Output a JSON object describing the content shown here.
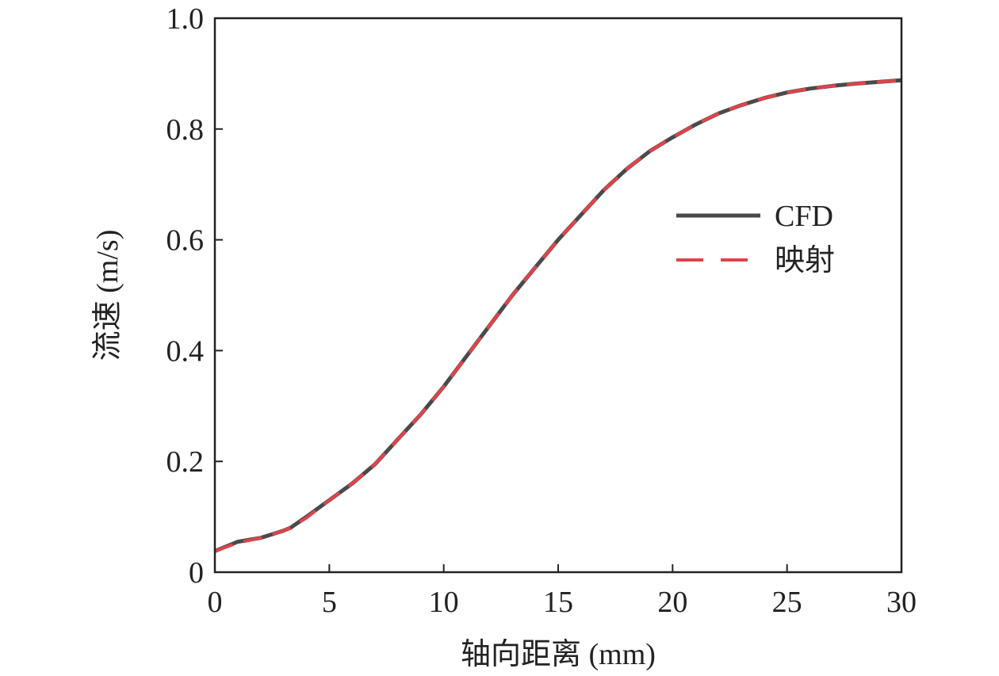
{
  "chart_data": {
    "type": "line",
    "xlabel": "轴向距离 (mm)",
    "ylabel": "流速 (m/s)",
    "xlim": [
      0,
      30
    ],
    "ylim": [
      0,
      1.0
    ],
    "x_ticks": [
      0,
      5,
      10,
      15,
      20,
      25,
      30
    ],
    "x_tick_labels": [
      "0",
      "5",
      "10",
      "15",
      "20",
      "25",
      "30"
    ],
    "y_ticks": [
      0,
      0.2,
      0.4,
      0.6,
      0.8,
      1.0
    ],
    "y_tick_labels": [
      "0",
      "0.2",
      "0.4",
      "0.6",
      "0.8",
      "1.0"
    ],
    "grid": false,
    "legend_position": "center-right",
    "series": [
      {
        "name": "CFD",
        "color": "#4a4a4a",
        "style": "solid",
        "x": [
          0,
          1,
          2,
          3,
          3.3,
          4,
          5,
          6,
          7,
          8,
          9,
          10,
          11,
          12,
          13,
          14,
          15,
          16,
          17,
          18,
          19,
          20,
          21,
          22,
          23,
          24,
          25,
          26,
          27,
          28,
          29,
          30
        ],
        "y": [
          0.038,
          0.055,
          0.062,
          0.075,
          0.08,
          0.1,
          0.13,
          0.16,
          0.195,
          0.24,
          0.285,
          0.335,
          0.39,
          0.445,
          0.5,
          0.55,
          0.6,
          0.645,
          0.69,
          0.728,
          0.76,
          0.785,
          0.808,
          0.828,
          0.843,
          0.856,
          0.866,
          0.873,
          0.878,
          0.882,
          0.885,
          0.888
        ]
      },
      {
        "name": "映射",
        "color": "#e0434b",
        "style": "dashed",
        "x": [
          0,
          1,
          2,
          3,
          3.3,
          4,
          5,
          6,
          7,
          8,
          9,
          10,
          11,
          12,
          13,
          14,
          15,
          16,
          17,
          18,
          19,
          20,
          21,
          22,
          23,
          24,
          25,
          26,
          27,
          28,
          29,
          30
        ],
        "y": [
          0.038,
          0.053,
          0.062,
          0.075,
          0.08,
          0.098,
          0.13,
          0.16,
          0.195,
          0.24,
          0.285,
          0.335,
          0.39,
          0.445,
          0.5,
          0.55,
          0.6,
          0.645,
          0.69,
          0.728,
          0.76,
          0.785,
          0.808,
          0.828,
          0.843,
          0.856,
          0.866,
          0.873,
          0.878,
          0.882,
          0.885,
          0.888
        ]
      }
    ]
  }
}
